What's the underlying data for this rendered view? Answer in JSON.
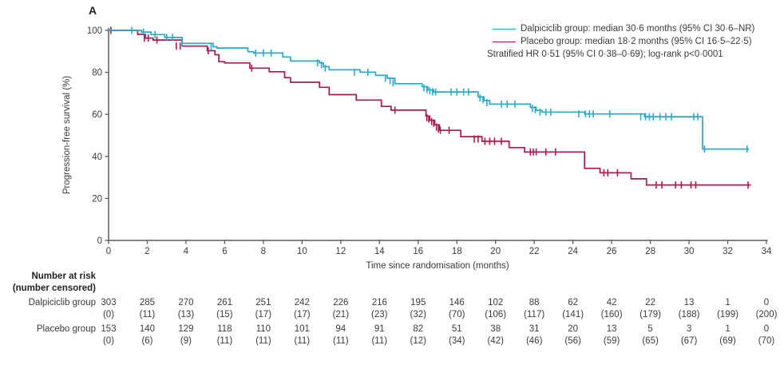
{
  "panel_label": "A",
  "colors": {
    "dalpiciclib": "#2aa9c9",
    "placebo": "#ae1750",
    "axis": "#595a5c",
    "text": "#3b3b3b"
  },
  "legend": [
    {
      "series": "dalpiciclib",
      "label": "Dalpiciclib group: median 30·6 months (95% CI 30·6–NR)"
    },
    {
      "series": "placebo",
      "label": "Placebo group: median 18·2 months (95% CI 16·5–22·5)"
    }
  ],
  "annotation": "Stratified HR 0·51 (95% CI 0·38–0·69); log-rank p<0·0001",
  "chart_data": {
    "type": "line",
    "subtype": "kaplan-meier-step",
    "title": "",
    "xlabel": "Time since randomisation (months)",
    "ylabel": "Progression-free survival (%)",
    "xlim": [
      0,
      34
    ],
    "ylim": [
      0,
      100
    ],
    "xticks": [
      0,
      2,
      4,
      6,
      8,
      10,
      12,
      14,
      16,
      18,
      20,
      22,
      24,
      26,
      28,
      30,
      32,
      34
    ],
    "yticks": [
      0,
      20,
      40,
      60,
      80,
      100
    ],
    "grid": false,
    "legend_position": "top-right",
    "series": [
      {
        "name": "Dalpiciclib group",
        "color": "#2aa9c9",
        "median_months": "30·6",
        "ci": "30·6–NR",
        "steps": [
          [
            0,
            100
          ],
          [
            1.7,
            99.2
          ],
          [
            2.2,
            98.0
          ],
          [
            2.9,
            96.6
          ],
          [
            3.8,
            93.8
          ],
          [
            5.4,
            92.2
          ],
          [
            5.6,
            91.6
          ],
          [
            7.2,
            89.8
          ],
          [
            7.5,
            89.2
          ],
          [
            9.0,
            87.3
          ],
          [
            9.4,
            85.4
          ],
          [
            10.9,
            84.5
          ],
          [
            11.1,
            82.7
          ],
          [
            11.4,
            81.2
          ],
          [
            13.0,
            80.1
          ],
          [
            13.8,
            78.6
          ],
          [
            14.4,
            77.2
          ],
          [
            14.8,
            74.6
          ],
          [
            16.2,
            73.2
          ],
          [
            16.5,
            71.6
          ],
          [
            16.8,
            70.7
          ],
          [
            19.1,
            68.3
          ],
          [
            19.4,
            66.6
          ],
          [
            19.7,
            64.9
          ],
          [
            21.8,
            63.3
          ],
          [
            22.1,
            61.9
          ],
          [
            22.4,
            61.1
          ],
          [
            24.6,
            60.2
          ],
          [
            27.7,
            58.9
          ],
          [
            30.7,
            43.5
          ],
          [
            33.1,
            43.5
          ]
        ],
        "censors": [
          [
            1.2,
            100
          ],
          [
            1.8,
            99.2
          ],
          [
            2.4,
            98.0
          ],
          [
            3.0,
            96.6
          ],
          [
            3.3,
            96.6
          ],
          [
            3.8,
            93.8
          ],
          [
            5.3,
            92.2
          ],
          [
            7.6,
            89.2
          ],
          [
            8.0,
            89.2
          ],
          [
            8.4,
            89.2
          ],
          [
            10.8,
            84.5
          ],
          [
            11.0,
            83.6
          ],
          [
            11.2,
            82.0
          ],
          [
            12.7,
            80.1
          ],
          [
            13.4,
            80.1
          ],
          [
            14.3,
            77.2
          ],
          [
            14.55,
            76.0
          ],
          [
            14.7,
            75.0
          ],
          [
            16.3,
            72.6
          ],
          [
            16.45,
            71.8
          ],
          [
            16.6,
            71.2
          ],
          [
            16.75,
            70.8
          ],
          [
            16.9,
            70.7
          ],
          [
            17.7,
            70.7
          ],
          [
            18.0,
            70.7
          ],
          [
            18.35,
            70.7
          ],
          [
            18.6,
            70.7
          ],
          [
            19.2,
            67.8
          ],
          [
            19.35,
            67.0
          ],
          [
            19.55,
            65.6
          ],
          [
            20.3,
            64.9
          ],
          [
            20.6,
            64.9
          ],
          [
            21.0,
            64.9
          ],
          [
            21.9,
            62.9
          ],
          [
            22.05,
            62.2
          ],
          [
            22.3,
            61.1
          ],
          [
            22.6,
            61.1
          ],
          [
            22.85,
            61.1
          ],
          [
            24.3,
            60.2
          ],
          [
            24.65,
            60.2
          ],
          [
            24.85,
            60.2
          ],
          [
            25.05,
            60.2
          ],
          [
            25.9,
            60.2
          ],
          [
            27.5,
            58.9
          ],
          [
            27.75,
            58.9
          ],
          [
            27.95,
            58.9
          ],
          [
            28.15,
            58.9
          ],
          [
            28.5,
            58.9
          ],
          [
            28.8,
            58.9
          ],
          [
            29.1,
            58.9
          ],
          [
            30.25,
            58.9
          ],
          [
            30.45,
            58.9
          ],
          [
            30.8,
            43.5
          ],
          [
            33.0,
            43.5
          ]
        ]
      },
      {
        "name": "Placebo group",
        "color": "#ae1750",
        "median_months": "18·2",
        "ci": "16·5–22·5",
        "steps": [
          [
            0,
            100
          ],
          [
            1.5,
            98.1
          ],
          [
            1.9,
            96.3
          ],
          [
            2.3,
            95.4
          ],
          [
            3.8,
            92.5
          ],
          [
            5.1,
            90.3
          ],
          [
            5.5,
            88.4
          ],
          [
            5.7,
            85.1
          ],
          [
            6.0,
            84.5
          ],
          [
            7.3,
            82.0
          ],
          [
            8.3,
            80.3
          ],
          [
            9.1,
            77.5
          ],
          [
            9.4,
            75.3
          ],
          [
            10.9,
            72.9
          ],
          [
            11.4,
            69.4
          ],
          [
            12.8,
            66.8
          ],
          [
            14.1,
            63.8
          ],
          [
            14.6,
            62.0
          ],
          [
            16.4,
            59.2
          ],
          [
            16.6,
            57.2
          ],
          [
            16.85,
            55.0
          ],
          [
            17.1,
            52.4
          ],
          [
            18.2,
            49.4
          ],
          [
            19.3,
            47.2
          ],
          [
            20.7,
            44.2
          ],
          [
            21.5,
            42.1
          ],
          [
            24.6,
            34.3
          ],
          [
            25.4,
            32.2
          ],
          [
            27.0,
            29.3
          ],
          [
            27.8,
            26.4
          ],
          [
            33.2,
            26.4
          ]
        ],
        "censors": [
          [
            0.12,
            100
          ],
          [
            1.85,
            96.3
          ],
          [
            2.05,
            96.3
          ],
          [
            2.5,
            95.4
          ],
          [
            3.5,
            92.5
          ],
          [
            3.7,
            92.5
          ],
          [
            5.15,
            90.3
          ],
          [
            7.4,
            82.0
          ],
          [
            14.8,
            62.0
          ],
          [
            16.45,
            58.4
          ],
          [
            16.55,
            57.8
          ],
          [
            16.7,
            56.6
          ],
          [
            16.8,
            55.8
          ],
          [
            16.95,
            54.0
          ],
          [
            17.05,
            53.0
          ],
          [
            17.15,
            52.4
          ],
          [
            17.6,
            52.4
          ],
          [
            18.9,
            48.3
          ],
          [
            19.1,
            48.3
          ],
          [
            19.45,
            47.2
          ],
          [
            19.7,
            47.2
          ],
          [
            19.95,
            47.2
          ],
          [
            20.3,
            47.2
          ],
          [
            21.8,
            42.1
          ],
          [
            21.95,
            42.1
          ],
          [
            22.1,
            42.1
          ],
          [
            22.6,
            42.1
          ],
          [
            23.1,
            42.1
          ],
          [
            25.6,
            32.2
          ],
          [
            25.8,
            32.2
          ],
          [
            26.3,
            32.2
          ],
          [
            28.3,
            26.4
          ],
          [
            28.6,
            26.4
          ],
          [
            29.3,
            26.4
          ],
          [
            29.6,
            26.4
          ],
          [
            30.1,
            26.4
          ],
          [
            30.35,
            26.4
          ],
          [
            33.05,
            26.4
          ]
        ]
      }
    ]
  },
  "risk_table": {
    "header_line1": "Number at risk",
    "header_line2": "(number censored)",
    "time_points": [
      0,
      2,
      4,
      6,
      8,
      10,
      12,
      14,
      16,
      18,
      20,
      22,
      24,
      26,
      28,
      30,
      32,
      34
    ],
    "rows": [
      {
        "label": "Dalpiciclib group",
        "at_risk": [
          "303",
          "285",
          "270",
          "261",
          "251",
          "242",
          "226",
          "216",
          "195",
          "146",
          "102",
          "88",
          "62",
          "42",
          "22",
          "13",
          "1",
          "0"
        ],
        "censored": [
          "(0)",
          "(11)",
          "(13)",
          "(15)",
          "(17)",
          "(17)",
          "(21)",
          "(23)",
          "(32)",
          "(70)",
          "(106)",
          "(117)",
          "(141)",
          "(160)",
          "(179)",
          "(188)",
          "(199)",
          "(200)"
        ]
      },
      {
        "label": "Placebo group",
        "at_risk": [
          "153",
          "140",
          "129",
          "118",
          "110",
          "101",
          "94",
          "91",
          "82",
          "51",
          "38",
          "31",
          "20",
          "13",
          "5",
          "3",
          "1",
          "0"
        ],
        "censored": [
          "(0)",
          "(6)",
          "(9)",
          "(11)",
          "(11)",
          "(11)",
          "(11)",
          "(11)",
          "(12)",
          "(34)",
          "(42)",
          "(46)",
          "(56)",
          "(59)",
          "(65)",
          "(67)",
          "(69)",
          "(70)"
        ]
      }
    ]
  }
}
